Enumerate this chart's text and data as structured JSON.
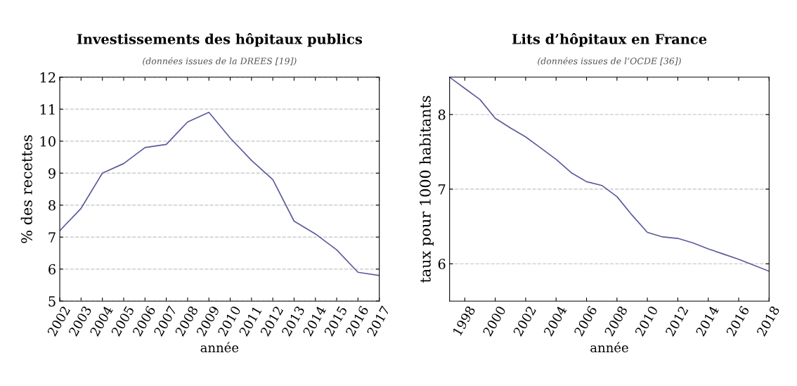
{
  "chart_data": [
    {
      "type": "line",
      "title": "Investissements des hôpitaux publics",
      "subtitle": "(données issues de la DREES [19])",
      "xlabel": "année",
      "ylabel": "% des recettes",
      "x": [
        2002,
        2003,
        2004,
        2005,
        2006,
        2007,
        2008,
        2009,
        2010,
        2011,
        2012,
        2013,
        2014,
        2015,
        2016,
        2017
      ],
      "series": [
        {
          "color": "#5b5b9e",
          "values": [
            7.2,
            7.9,
            9.0,
            9.3,
            9.8,
            9.9,
            10.6,
            10.9,
            10.1,
            9.4,
            8.8,
            7.5,
            7.1,
            6.6,
            5.9,
            5.8
          ]
        }
      ],
      "xlim": [
        2002,
        2017
      ],
      "xticks": [
        2002,
        2003,
        2004,
        2005,
        2006,
        2007,
        2008,
        2009,
        2010,
        2011,
        2012,
        2013,
        2014,
        2015,
        2016,
        2017
      ],
      "ylim": [
        5,
        12
      ],
      "yticks": [
        5,
        6,
        7,
        8,
        9,
        10,
        11,
        12
      ],
      "grid": "y",
      "marker": "none",
      "line_style": "solid"
    },
    {
      "type": "line",
      "title": "Lits d’hôpitaux en France",
      "subtitle": "(données issues de l’OCDE [36])",
      "xlabel": "année",
      "ylabel": "taux pour 1000 habitants",
      "x": [
        1997,
        1998,
        1999,
        2000,
        2001,
        2002,
        2003,
        2004,
        2005,
        2006,
        2007,
        2008,
        2009,
        2010,
        2011,
        2012,
        2013,
        2014,
        2015,
        2016,
        2017,
        2018
      ],
      "series": [
        {
          "color": "#5b5b9e",
          "values": [
            8.5,
            8.35,
            8.2,
            7.95,
            7.82,
            7.7,
            7.55,
            7.4,
            7.22,
            7.1,
            7.05,
            6.9,
            6.65,
            6.42,
            6.36,
            6.34,
            6.28,
            6.2,
            6.13,
            6.06,
            5.98,
            5.9
          ]
        }
      ],
      "xlim": [
        1997,
        2018
      ],
      "xticks": [
        1998,
        2000,
        2002,
        2004,
        2006,
        2008,
        2010,
        2012,
        2014,
        2016,
        2018
      ],
      "ylim": [
        5.5,
        8.5
      ],
      "yticks": [
        6,
        7,
        8
      ],
      "grid": "y",
      "marker": "none",
      "line_style": "solid"
    }
  ]
}
